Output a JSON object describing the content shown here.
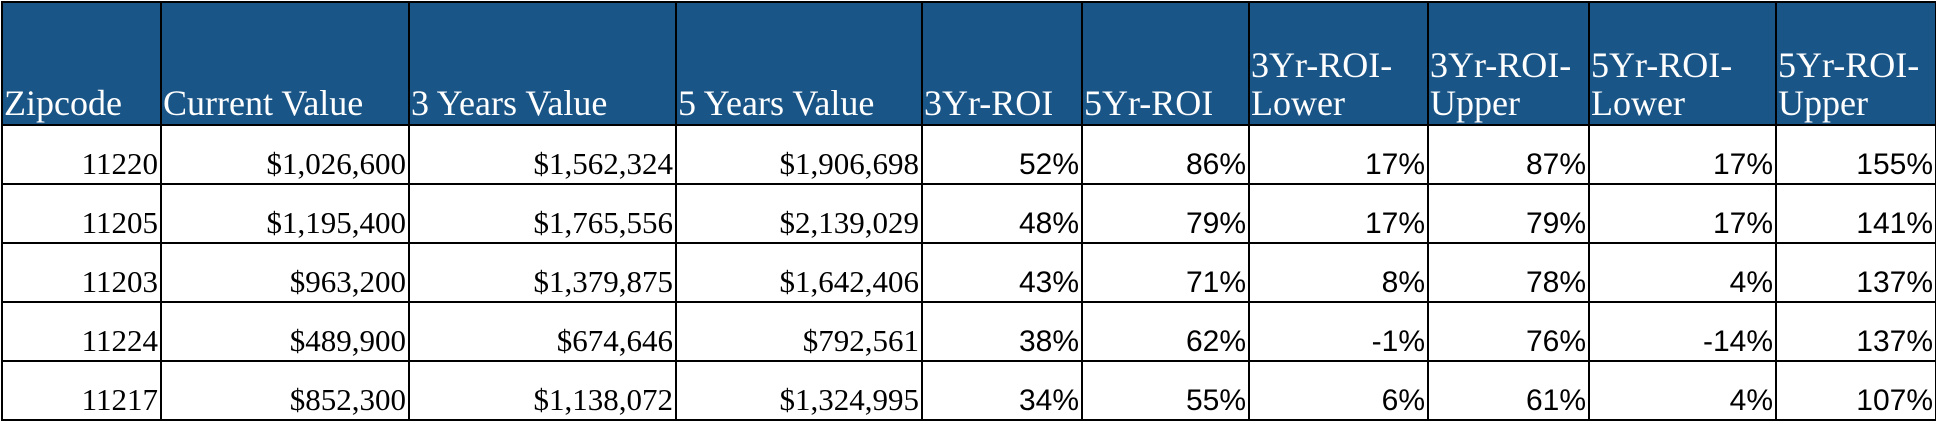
{
  "table": {
    "headers": [
      "Zipcode",
      "Current Value",
      "3 Years Value",
      "5 Years Value",
      "3Yr-ROI",
      "5Yr-ROI",
      "3Yr-ROI-Lower",
      "3Yr-ROI-Upper",
      "5Yr-ROI-Lower",
      "5Yr-ROI-Upper"
    ],
    "rows": [
      [
        "11220",
        "$1,026,600",
        "$1,562,324",
        "$1,906,698",
        "52%",
        "86%",
        "17%",
        "87%",
        "17%",
        "155%"
      ],
      [
        "11205",
        "$1,195,400",
        "$1,765,556",
        "$2,139,029",
        "48%",
        "79%",
        "17%",
        "79%",
        "17%",
        "141%"
      ],
      [
        "11203",
        "$963,200",
        "$1,379,875",
        "$1,642,406",
        "43%",
        "71%",
        "8%",
        "78%",
        "4%",
        "137%"
      ],
      [
        "11224",
        "$489,900",
        "$674,646",
        "$792,561",
        "38%",
        "62%",
        "-1%",
        "76%",
        "-14%",
        "137%"
      ],
      [
        "11217",
        "$852,300",
        "$1,138,072",
        "$1,324,995",
        "34%",
        "55%",
        "6%",
        "61%",
        "4%",
        "107%"
      ]
    ]
  },
  "colors": {
    "header_bg": "#1a5587",
    "header_text": "#ffffff",
    "border": "#000000"
  }
}
